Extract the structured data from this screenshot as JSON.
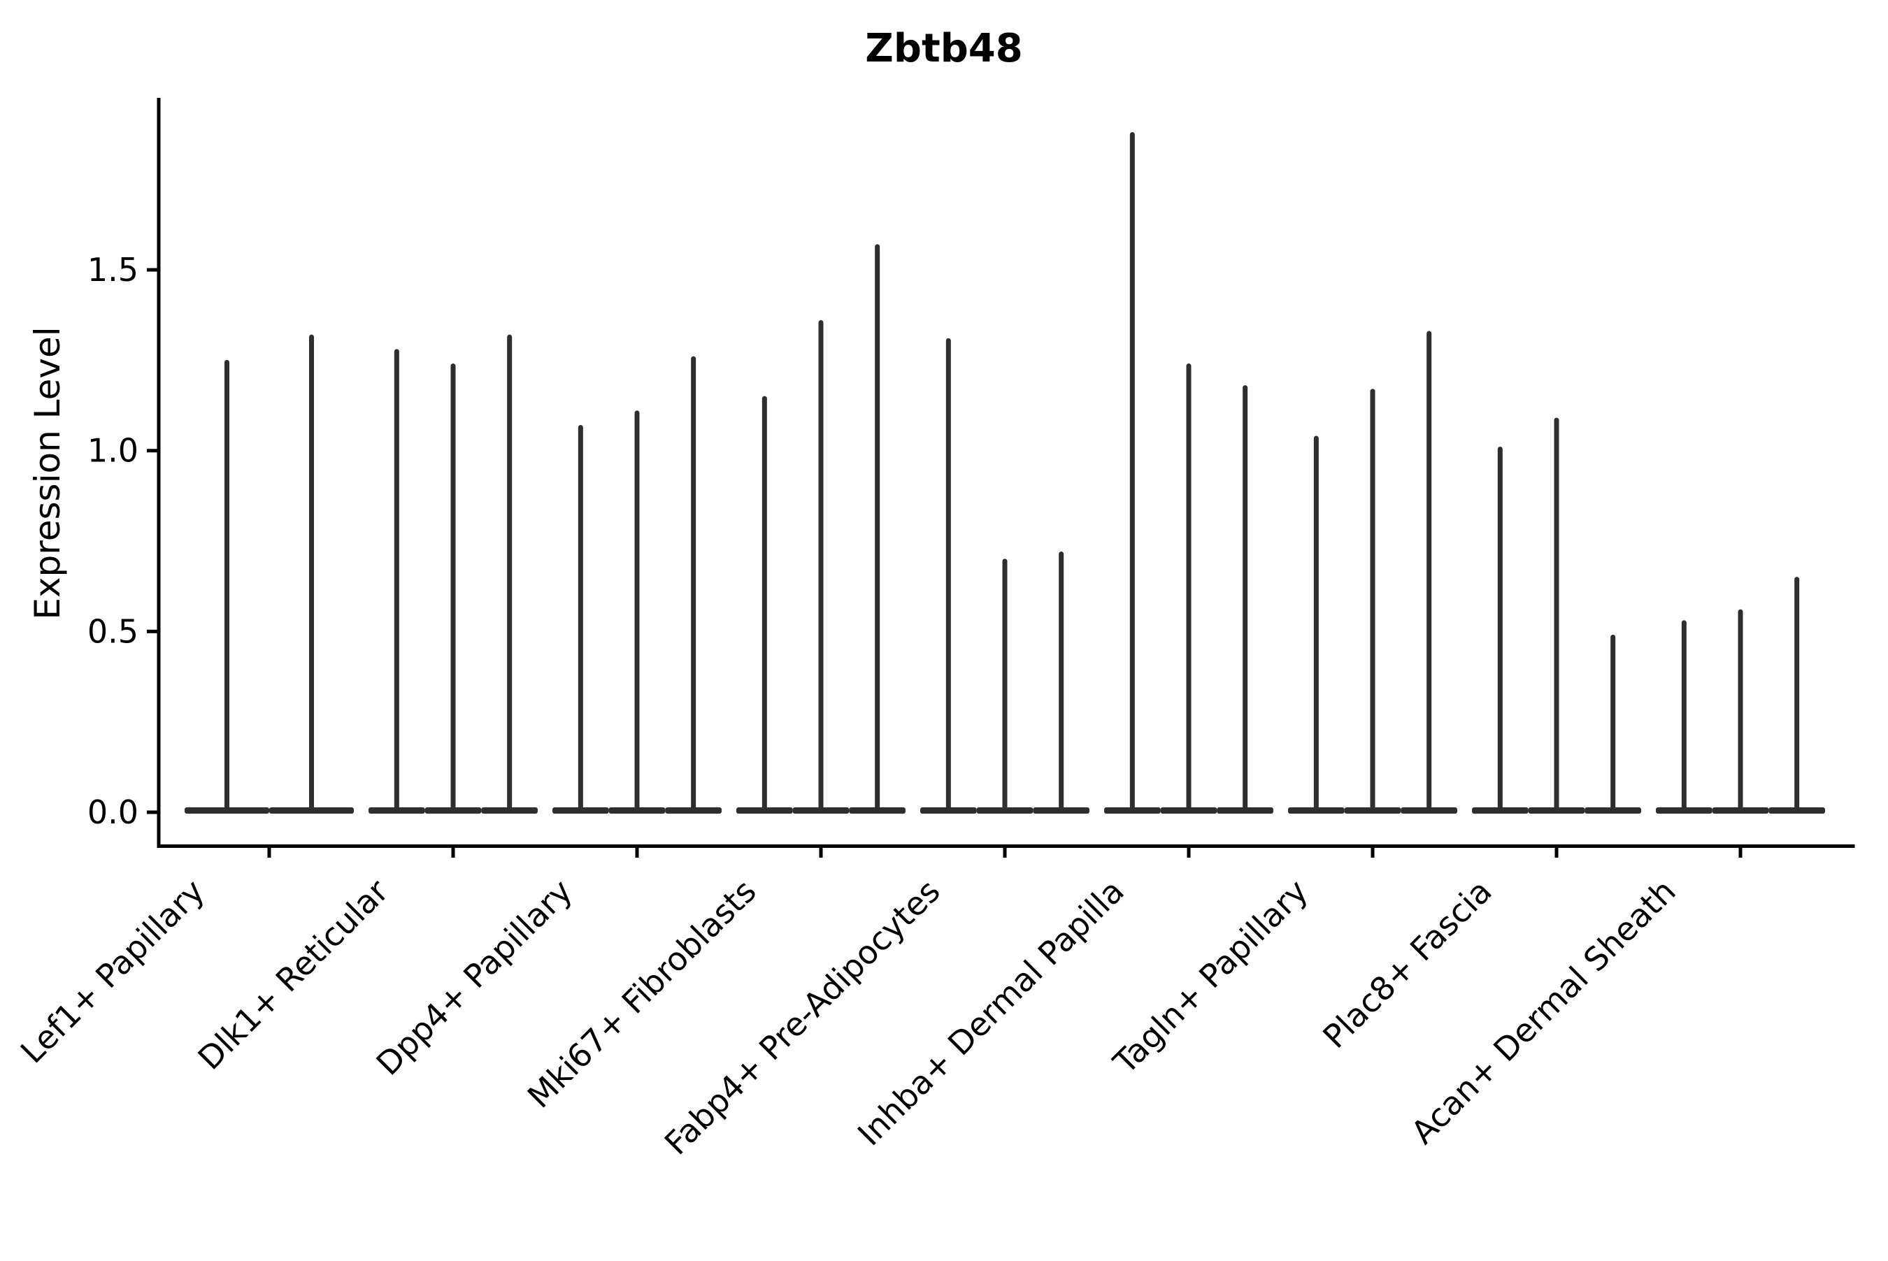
{
  "chart_data": {
    "type": "violin",
    "title": "Zbtb48",
    "ylabel": "Expression Level",
    "xlabel": "",
    "legend": "none",
    "grid": false,
    "ylim": [
      -0.093,
      1.976
    ],
    "ytick_values": [
      0.0,
      0.5,
      1.0,
      1.5
    ],
    "ytick_labels": [
      "0.0",
      "0.5",
      "1.0",
      "1.5"
    ],
    "violin_color": "#2e2e2e",
    "axis_color": "#000000",
    "groups": [
      {
        "label": "Lef1+ Papillary",
        "spike_maxima": [
          1.25,
          1.32
        ]
      },
      {
        "label": "Dlk1+ Reticular",
        "spike_maxima": [
          1.28,
          1.24,
          1.32
        ]
      },
      {
        "label": "Dpp4+ Papillary",
        "spike_maxima": [
          1.07,
          1.11,
          1.26
        ]
      },
      {
        "label": "Mki67+ Fibroblasts",
        "spike_maxima": [
          1.15,
          1.36,
          1.57
        ]
      },
      {
        "label": "Fabp4+ Pre-Adipocytes",
        "spike_maxima": [
          1.31,
          0.7,
          0.72
        ]
      },
      {
        "label": "Inhba+ Dermal Papilla",
        "spike_maxima": [
          1.88,
          1.24,
          1.18
        ]
      },
      {
        "label": "Tagln+ Papillary",
        "spike_maxima": [
          1.04,
          1.17,
          1.33
        ]
      },
      {
        "label": "Plac8+ Fascia",
        "spike_maxima": [
          1.01,
          1.09,
          0.49
        ]
      },
      {
        "label": "Acan+ Dermal Sheath",
        "spike_maxima": [
          0.53,
          0.56,
          0.65
        ]
      }
    ]
  }
}
